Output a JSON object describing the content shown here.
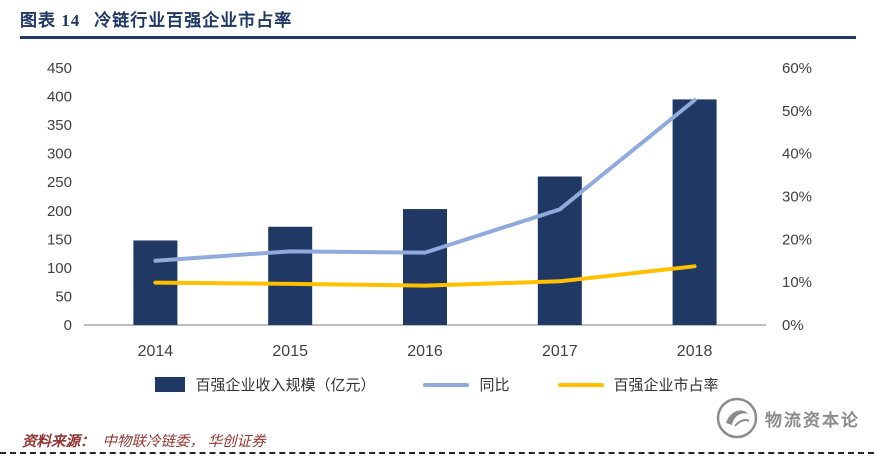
{
  "header": {
    "label": "图表 14",
    "title": "冷链行业百强企业市占率"
  },
  "chart_data": {
    "type": "combo-bar-line",
    "categories": [
      "2014",
      "2015",
      "2016",
      "2017",
      "2018"
    ],
    "series": [
      {
        "name": "百强企业收入规模（亿元）",
        "type": "bar",
        "axis": "left",
        "color": "#1F3864",
        "values": [
          148,
          172,
          203,
          260,
          395
        ]
      },
      {
        "name": "同比",
        "type": "line",
        "axis": "right",
        "color": "#8FAADC",
        "values": [
          15,
          17.2,
          16.9,
          27,
          52.5
        ]
      },
      {
        "name": "百强企业市占率",
        "type": "line",
        "axis": "right",
        "color": "#FFC000",
        "values": [
          9.9,
          9.6,
          9.2,
          10.2,
          13.7
        ]
      }
    ],
    "left_axis": {
      "min": 0,
      "max": 450,
      "step": 50,
      "labels": [
        "0",
        "50",
        "100",
        "150",
        "200",
        "250",
        "300",
        "350",
        "400",
        "450"
      ]
    },
    "right_axis": {
      "min": 0,
      "max": 60,
      "step": 10,
      "labels": [
        "0%",
        "10%",
        "20%",
        "30%",
        "40%",
        "50%",
        "60%"
      ]
    },
    "grid": false,
    "legend_position": "bottom",
    "axis_line_color": "#A6A6A6"
  },
  "footer": {
    "source_prefix": "资料来源：",
    "source_text": "中物联冷链委， 华创证券"
  },
  "watermark": {
    "text": "物流资本论"
  }
}
